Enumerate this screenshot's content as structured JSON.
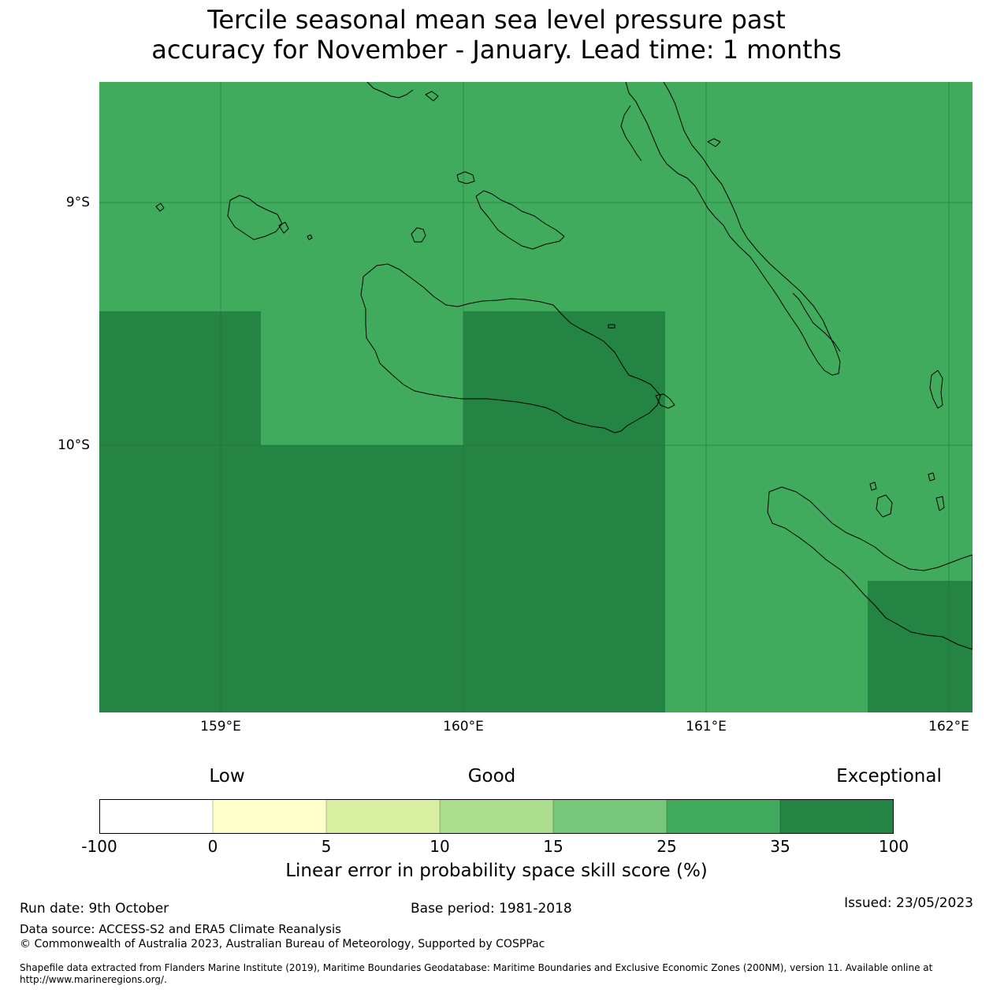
{
  "title": {
    "line1": "Tercile seasonal mean sea level pressure past",
    "line2": "accuracy for November - January. Lead time: 1 months"
  },
  "map": {
    "x_ticks": [
      "159°E",
      "160°E",
      "161°E",
      "162°E"
    ],
    "y_ticks": [
      "9°S",
      "10°S"
    ],
    "lon_range": [
      158.5,
      162.1
    ],
    "lat_range": [
      -8.5,
      -11.1
    ],
    "colors": {
      "good_25_35": "#41ab5d",
      "exceptional_35_100": "#238443",
      "coastline": "#000000"
    }
  },
  "colorbar": {
    "category_labels": {
      "low": "Low",
      "good": "Good",
      "exceptional": "Exceptional"
    },
    "tick_labels": [
      "-100",
      "0",
      "5",
      "10",
      "15",
      "25",
      "35",
      "100"
    ],
    "colors": [
      "#ffffff",
      "#ffffcc",
      "#d9f0a3",
      "#addd8e",
      "#78c679",
      "#41ab5d",
      "#238443"
    ],
    "label": "Linear error in probability space skill score (%)"
  },
  "footer": {
    "run_date": "Run date: 9th October",
    "base_period": "Base period: 1981-2018",
    "issued": "Issued: 23/05/2023",
    "data_source": "Data source: ACCESS-S2 and ERA5 Climate Reanalysis",
    "copyright": "© Commonwealth of Australia 2023, Australian Bureau of Meteorology, Supported by COSPPac",
    "shapefile_line1": "Shapefile data extracted from Flanders Marine Institute (2019), Maritime Boundaries Geodatabase: Maritime Boundaries and Exclusive Economic Zones (200NM), version 11. Available online at",
    "shapefile_line2": "http://www.marineregions.org/."
  }
}
